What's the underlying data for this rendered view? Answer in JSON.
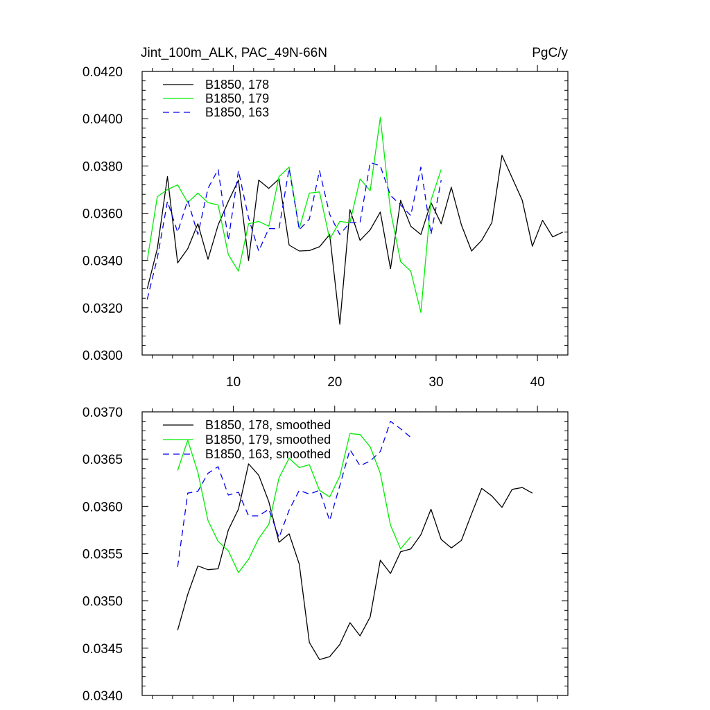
{
  "chart_data": [
    {
      "type": "line",
      "title": "Jint_100m_ALK, PAC_49N-66N",
      "units": "PgC/y",
      "xlabel": "",
      "ylabel": "",
      "xlim": [
        1,
        43
      ],
      "ylim": [
        0.03,
        0.042
      ],
      "xticks": [
        10,
        20,
        30,
        40
      ],
      "xtick_labels": [
        "10",
        "20",
        "30",
        "40"
      ],
      "yticks": [
        0.03,
        0.032,
        0.034,
        0.036,
        0.038,
        0.04,
        0.042
      ],
      "ytick_labels": [
        "0.0300",
        "0.0320",
        "0.0340",
        "0.0360",
        "0.0380",
        "0.0400",
        "0.0420"
      ],
      "legend_position": "top-left",
      "series": [
        {
          "name": "B1850, 178",
          "color": "#000000",
          "dash": "solid",
          "x": [
            1.5,
            2.5,
            3.5,
            4.5,
            5.5,
            6.5,
            7.5,
            8.5,
            9.5,
            10.5,
            11.5,
            12.5,
            13.5,
            14.5,
            15.5,
            16.5,
            17.5,
            18.5,
            19.5,
            20.5,
            21.5,
            22.5,
            23.5,
            24.5,
            25.5,
            26.5,
            27.5,
            28.5,
            29.5,
            30.5,
            31.5,
            32.5,
            33.5,
            34.5,
            35.5,
            36.5,
            37.5,
            38.5,
            39.5,
            40.5,
            41.5,
            42.5
          ],
          "y": [
            0.0328,
            0.0345,
            0.03755,
            0.0339,
            0.0345,
            0.03555,
            0.03405,
            0.0355,
            0.0365,
            0.0374,
            0.034,
            0.0374,
            0.03705,
            0.03745,
            0.03465,
            0.0344,
            0.03442,
            0.03458,
            0.0351,
            0.0313,
            0.03615,
            0.03485,
            0.0353,
            0.03605,
            0.03365,
            0.03655,
            0.03545,
            0.0351,
            0.03645,
            0.03555,
            0.0371,
            0.0355,
            0.0344,
            0.03485,
            0.0356,
            0.03845,
            0.0375,
            0.03655,
            0.0346,
            0.0357,
            0.035,
            0.0352
          ]
        },
        {
          "name": "B1850, 179",
          "color": "#00ee00",
          "dash": "solid",
          "x": [
            1.5,
            2.5,
            3.5,
            4.5,
            5.5,
            6.5,
            7.5,
            8.5,
            9.5,
            10.5,
            11.5,
            12.5,
            13.5,
            14.5,
            15.5,
            16.5,
            17.5,
            18.5,
            19.5,
            20.5,
            21.5,
            22.5,
            23.5,
            24.5,
            25.5,
            26.5,
            27.5,
            28.5,
            29.5,
            30.5
          ],
          "y": [
            0.034,
            0.0367,
            0.037,
            0.0372,
            0.03645,
            0.03685,
            0.03645,
            0.03635,
            0.03425,
            0.03355,
            0.03555,
            0.03565,
            0.03545,
            0.03755,
            0.03795,
            0.03535,
            0.03685,
            0.0369,
            0.0349,
            0.03565,
            0.0356,
            0.03745,
            0.03695,
            0.04005,
            0.0361,
            0.03395,
            0.03355,
            0.0318,
            0.03655,
            0.03785
          ]
        },
        {
          "name": "B1850, 163",
          "color": "#0000ee",
          "dash": "dashed",
          "x": [
            1.5,
            2.5,
            3.5,
            4.5,
            5.5,
            6.5,
            7.5,
            8.5,
            9.5,
            10.5,
            11.5,
            12.5,
            13.5,
            14.5,
            15.5,
            16.5,
            17.5,
            18.5,
            19.5,
            20.5,
            21.5,
            22.5,
            23.5,
            24.5,
            25.5,
            26.5,
            27.5,
            28.5,
            29.5,
            30.5
          ],
          "y": [
            0.03235,
            0.0341,
            0.0365,
            0.0352,
            0.03655,
            0.0351,
            0.03705,
            0.03785,
            0.03485,
            0.0378,
            0.0358,
            0.0344,
            0.03535,
            0.03535,
            0.0379,
            0.0353,
            0.03575,
            0.0378,
            0.03595,
            0.0351,
            0.0356,
            0.0356,
            0.03815,
            0.038,
            0.03675,
            0.03635,
            0.0359,
            0.03795,
            0.0351,
            0.0374
          ]
        }
      ]
    },
    {
      "type": "line",
      "title": "",
      "xlabel": "",
      "ylabel": "",
      "xlim": [
        1,
        43
      ],
      "ylim": [
        0.034,
        0.037
      ],
      "xticks": [
        10,
        20,
        30,
        40
      ],
      "xtick_labels": [],
      "yticks": [
        0.034,
        0.0345,
        0.035,
        0.0355,
        0.036,
        0.0365,
        0.037
      ],
      "ytick_labels": [
        "0.0340",
        "0.0345",
        "0.0350",
        "0.0355",
        "0.0360",
        "0.0365",
        "0.0370"
      ],
      "legend_position": "top-left",
      "series": [
        {
          "name": "B1850, 178, smoothed",
          "color": "#000000",
          "dash": "solid",
          "x": [
            4.5,
            5.5,
            6.5,
            7.5,
            8.5,
            9.5,
            10.5,
            11.5,
            12.5,
            13.5,
            14.5,
            15.5,
            16.5,
            17.5,
            18.5,
            19.5,
            20.5,
            21.5,
            22.5,
            23.5,
            24.5,
            25.5,
            26.5,
            27.5,
            28.5,
            29.5,
            30.5,
            31.5,
            32.5,
            33.5,
            34.5,
            35.5,
            36.5,
            37.5,
            38.5,
            39.5
          ],
          "y": [
            0.03469,
            0.03507,
            0.03537,
            0.03533,
            0.03534,
            0.03575,
            0.03597,
            0.03645,
            0.03633,
            0.03605,
            0.03562,
            0.03571,
            0.03539,
            0.03456,
            0.03438,
            0.03441,
            0.03454,
            0.03477,
            0.03463,
            0.03483,
            0.03543,
            0.03529,
            0.03552,
            0.03555,
            0.0357,
            0.03597,
            0.03565,
            0.03556,
            0.03564,
            0.03592,
            0.03619,
            0.03611,
            0.03599,
            0.03618,
            0.0362,
            0.03614
          ]
        },
        {
          "name": "B1850, 179, smoothed",
          "color": "#00ee00",
          "dash": "solid",
          "x": [
            4.5,
            5.5,
            6.5,
            7.5,
            8.5,
            9.5,
            10.5,
            11.5,
            12.5,
            13.5,
            14.5,
            15.5,
            16.5,
            17.5,
            18.5,
            19.5,
            20.5,
            21.5,
            22.5,
            23.5,
            24.5,
            25.5,
            26.5,
            27.5
          ],
          "y": [
            0.03638,
            0.0367,
            0.03636,
            0.03585,
            0.03563,
            0.03553,
            0.0353,
            0.03544,
            0.03566,
            0.03581,
            0.0363,
            0.03651,
            0.03641,
            0.03644,
            0.03617,
            0.0361,
            0.03632,
            0.03677,
            0.03676,
            0.03663,
            0.03635,
            0.0358,
            0.03555,
            0.03568
          ]
        },
        {
          "name": "B1850, 163, smoothed",
          "color": "#0000ee",
          "dash": "dashed",
          "x": [
            4.5,
            5.5,
            6.5,
            7.5,
            8.5,
            9.5,
            10.5,
            11.5,
            12.5,
            13.5,
            14.5,
            15.5,
            16.5,
            17.5,
            18.5,
            19.5,
            20.5,
            21.5,
            22.5,
            23.5,
            24.5,
            25.5,
            26.5,
            27.5
          ],
          "y": [
            0.03536,
            0.03614,
            0.03616,
            0.03635,
            0.03642,
            0.03612,
            0.03615,
            0.0359,
            0.0359,
            0.03597,
            0.03567,
            0.03596,
            0.03617,
            0.03613,
            0.03617,
            0.03585,
            0.03622,
            0.0366,
            0.03643,
            0.03648,
            0.03658,
            0.0369,
            0.03682,
            0.03673
          ]
        }
      ]
    }
  ]
}
